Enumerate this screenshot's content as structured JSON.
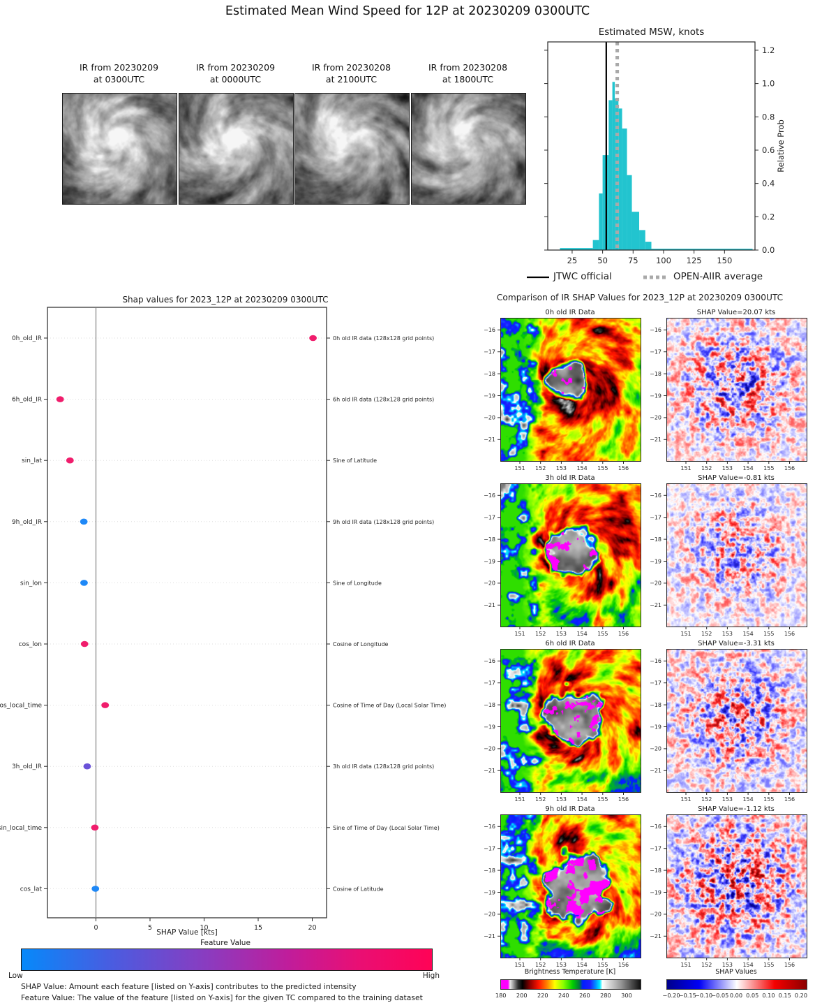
{
  "title": "Estimated Mean Wind Speed for 12P at 20230209 0300UTC",
  "thumbnails": [
    {
      "line1": "IR from 20230209",
      "line2": "at 0300UTC"
    },
    {
      "line1": "IR from 20230209",
      "line2": "at 0000UTC"
    },
    {
      "line1": "IR from 20230208",
      "line2": "at 2100UTC"
    },
    {
      "line1": "IR from 20230208",
      "line2": "at 1800UTC"
    }
  ],
  "colors": {
    "hist_bar": "#22c4cf",
    "jtwc_line": "#000000",
    "openaiir_line": "#a9a9a9",
    "pink": "#f01d6c",
    "blue": "#1e88f7",
    "purple": "#6a52d8",
    "zero_line": "#8a8a8a",
    "cbar_low": "#0689fa",
    "cbar_high": "#ff0356"
  },
  "chart_data": [
    {
      "id": "msw_histogram",
      "type": "bar",
      "title": "Estimated MSW, knots",
      "ylabel": "Relative Prob",
      "xlim": [
        5,
        175
      ],
      "ylim": [
        0,
        1.25
      ],
      "xticks": [
        25,
        50,
        75,
        100,
        125,
        150
      ],
      "yticks": [
        "0.0",
        "0.2",
        "0.4",
        "0.6",
        "0.8",
        "1.0",
        "1.2"
      ],
      "bars": [
        {
          "x0": 15,
          "x1": 42,
          "h": 0.012
        },
        {
          "x0": 42,
          "x1": 47,
          "h": 0.06
        },
        {
          "x0": 47,
          "x1": 50,
          "h": 0.34
        },
        {
          "x0": 50,
          "x1": 55,
          "h": 0.57
        },
        {
          "x0": 55,
          "x1": 58,
          "h": 0.9
        },
        {
          "x0": 58,
          "x1": 60,
          "h": 1.01
        },
        {
          "x0": 60,
          "x1": 63,
          "h": 0.91
        },
        {
          "x0": 63,
          "x1": 66,
          "h": 0.85
        },
        {
          "x0": 66,
          "x1": 70,
          "h": 0.73
        },
        {
          "x0": 70,
          "x1": 74,
          "h": 0.45
        },
        {
          "x0": 74,
          "x1": 80,
          "h": 0.23
        },
        {
          "x0": 80,
          "x1": 85,
          "h": 0.12
        },
        {
          "x0": 85,
          "x1": 90,
          "h": 0.05
        },
        {
          "x0": 90,
          "x1": 173,
          "h": 0.008
        }
      ],
      "jtwc_official_kts": 53,
      "openaiir_average_kts": 62,
      "legend": [
        {
          "label": "JTWC official",
          "style": "solid-black-line"
        },
        {
          "label": "OPEN-AIIR average",
          "style": "dotted-gray-line"
        }
      ]
    },
    {
      "id": "shap_summary",
      "type": "scatter",
      "title": "Shap values for 2023_12P at 20230209 0300UTC",
      "xlabel": "SHAP Value [kts]",
      "xlim": [
        -4.5,
        21.3
      ],
      "xticks": [
        0,
        5,
        10,
        15,
        20
      ],
      "features": [
        {
          "name": "0h_old_IR",
          "desc": "0h old IR data (128x128 grid points)",
          "shap_kts": 20.07,
          "color": "pink"
        },
        {
          "name": "6h_old_IR",
          "desc": "6h old IR data (128x128 grid points)",
          "shap_kts": -3.31,
          "color": "pink"
        },
        {
          "name": "sin_lat",
          "desc": "Sine of Latitude",
          "shap_kts": -2.4,
          "color": "pink"
        },
        {
          "name": "9h_old_IR",
          "desc": "9h old IR data (128x128 grid points)",
          "shap_kts": -1.12,
          "color": "blue"
        },
        {
          "name": "sin_lon",
          "desc": "Sine of Longitude",
          "shap_kts": -1.1,
          "color": "blue"
        },
        {
          "name": "cos_lon",
          "desc": "Cosine of Longitude",
          "shap_kts": -1.05,
          "color": "pink"
        },
        {
          "name": "cos_local_time",
          "desc": "Cosine of Time of Day (Local Solar Time)",
          "shap_kts": 0.85,
          "color": "pink"
        },
        {
          "name": "3h_old_IR",
          "desc": "3h old IR data (128x128 grid points)",
          "shap_kts": -0.81,
          "color": "purple"
        },
        {
          "name": "sin_local_time",
          "desc": "Sine of Time of Day (Local Solar Time)",
          "shap_kts": -0.1,
          "color": "pink"
        },
        {
          "name": "cos_lat",
          "desc": "Cosine of Latitude",
          "shap_kts": -0.05,
          "color": "blue"
        }
      ],
      "colorbar": {
        "title": "Feature Value",
        "low": "Low",
        "high": "High"
      }
    },
    {
      "id": "ir_shap_maps",
      "type": "heatmap",
      "title": "Comparison of IR SHAP Values for 2023_12P at 20230209 0300UTC",
      "rows": [
        {
          "map_title": "0h old IR Data",
          "shap_title": "SHAP Value=20.07 kts",
          "shap_kts": 20.07
        },
        {
          "map_title": "3h old IR Data",
          "shap_title": "SHAP Value=-0.81 kts",
          "shap_kts": -0.81
        },
        {
          "map_title": "6h old IR Data",
          "shap_title": "SHAP Value=-3.31 kts",
          "shap_kts": -3.31
        },
        {
          "map_title": "9h old IR Data",
          "shap_title": "SHAP Value=-1.12 kts",
          "shap_kts": -1.12
        }
      ],
      "xticks": [
        "151",
        "152",
        "153",
        "154",
        "155",
        "156"
      ],
      "yticks": [
        "−16",
        "−17",
        "−18",
        "−19",
        "−20",
        "−21"
      ],
      "bt_colorbar": {
        "title": "Brightness Temperature [K]",
        "ticks": [
          "180",
          "200",
          "220",
          "240",
          "260",
          "280",
          "300"
        ]
      },
      "shap_colorbar": {
        "title": "SHAP Values",
        "ticks": [
          "−0.20",
          "−0.15",
          "−0.10",
          "−0.05",
          "0.00",
          "0.05",
          "0.10",
          "0.15",
          "0.20"
        ]
      }
    }
  ],
  "footnotes": [
    "SHAP Value: Amount each feature [listed on Y-axis] contributes to the predicted intensity",
    "Feature Value: The value of the feature [listed on Y-axis] for the given TC compared to the training dataset"
  ]
}
